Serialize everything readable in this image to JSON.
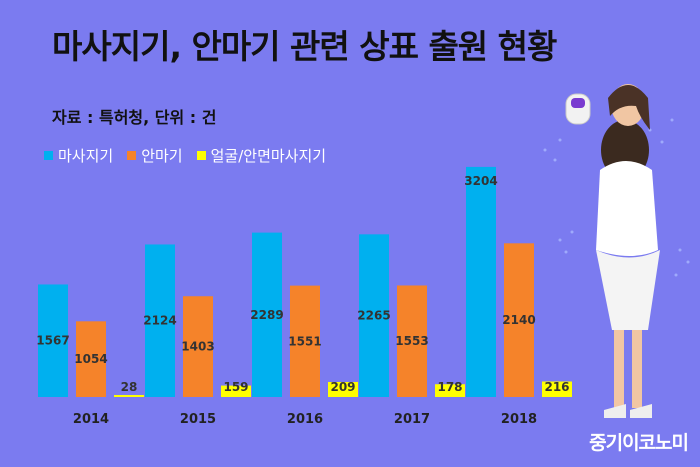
{
  "title": "마사지기, 안마기 관련 상표 출원 현황",
  "source": "자료 : 특허청, 단위 : 건",
  "brand": "중기이코노미",
  "colors": {
    "background": "#7b7bf0",
    "massager": "#00b0ef",
    "anma": "#f5832a",
    "face": "#ffff00"
  },
  "chart_data": {
    "type": "bar",
    "categories": [
      "2014",
      "2015",
      "2016",
      "2017",
      "2018"
    ],
    "series": [
      {
        "name": "마사지기",
        "values": [
          1567,
          2124,
          2289,
          2265,
          3204
        ]
      },
      {
        "name": "안마기",
        "values": [
          1054,
          1403,
          1551,
          1553,
          2140
        ]
      },
      {
        "name": "얼굴/안면마사지기",
        "values": [
          28,
          159,
          209,
          178,
          216
        ]
      }
    ],
    "ylim": [
      0,
      3300
    ],
    "grid": false,
    "legend": "top-left"
  }
}
